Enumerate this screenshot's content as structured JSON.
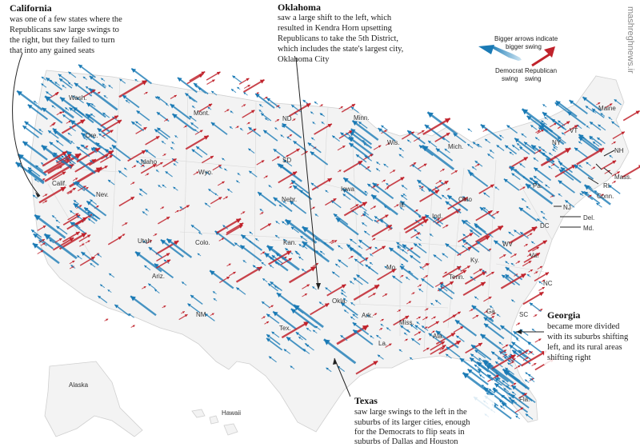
{
  "annotations": {
    "california": {
      "title": "California",
      "lines": [
        "was one of a few states where the",
        "Republicans saw large swings to",
        "the right, but they failed to turn",
        "that into any gained seats"
      ]
    },
    "oklahoma": {
      "title": "Oklahoma",
      "lines": [
        "saw a large shift to the left, which",
        "resulted in Kendra Horn upsetting",
        "Republicans to take the 5th District,",
        "which includes the state's largest city,",
        "Oklahoma City"
      ]
    },
    "georgia": {
      "title": "Georgia",
      "lines": [
        "became more divided",
        "with its suburbs shifting",
        "left, and its rural areas",
        "shifting right"
      ]
    },
    "texas": {
      "title": "Texas",
      "lines": [
        "saw large swings to the left in the",
        "suburbs of its larger cities, enough",
        "for the Democrats to flip seats in",
        "suburbs of Dallas and Houston"
      ]
    }
  },
  "legend": {
    "caption_lines": [
      "Bigger arrows indicate",
      "bigger swing"
    ],
    "democrat_lines": [
      "Democrat",
      "swing"
    ],
    "republican_lines": [
      "Republican",
      "swing"
    ],
    "democrat_color": "#1a7ab5",
    "republican_color": "#c0222b"
  },
  "state_labels": [
    "Wash.",
    "Ore.",
    "Calif.",
    "Nev.",
    "Idaho",
    "Mont.",
    "Wyo.",
    "Utah",
    "Ariz.",
    "Colo.",
    "NM",
    "ND",
    "SD",
    "Nebr.",
    "Kan.",
    "Okla.",
    "Tex.",
    "Minn.",
    "Iowa",
    "Mo.",
    "Ark.",
    "La.",
    "Wis.",
    "Ill.",
    "Miss.",
    "Ala.",
    "Mich.",
    "Ind.",
    "Ohio",
    "Ky.",
    "Tenn.",
    "Ga.",
    "Fla.",
    "SC",
    "NC",
    "Va.",
    "WV",
    "Pa.",
    "NY",
    "VT",
    "Maine",
    "NH",
    "Mass.",
    "RI",
    "Conn.",
    "NJ",
    "Del.",
    "Md.",
    "DC",
    "Alaska",
    "Hawaii"
  ],
  "watermark": "mashreghnews.ir"
}
